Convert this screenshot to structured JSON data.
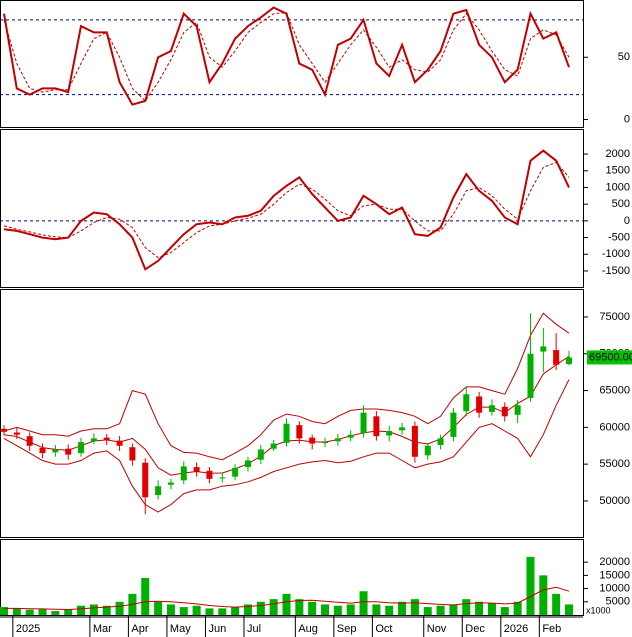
{
  "chart_data": [
    {
      "type": "line",
      "ylim": [
        -6,
        96
      ],
      "yticks": [
        0,
        50
      ],
      "hlines": [
        80,
        20
      ],
      "hline_color": "#000080",
      "series": [
        {
          "color": "#c00000",
          "values": [
            85,
            25,
            20,
            25,
            25,
            22,
            75,
            70,
            70,
            30,
            12,
            15,
            50,
            55,
            85,
            75,
            30,
            45,
            65,
            75,
            82,
            90,
            85,
            45,
            40,
            20,
            60,
            65,
            80,
            45,
            35,
            60,
            30,
            40,
            55,
            85,
            88,
            60,
            50,
            30,
            40,
            85,
            65,
            70,
            42
          ]
        },
        {
          "color": "#c00000",
          "dashed": true,
          "values": [
            80,
            45,
            25,
            22,
            24,
            24,
            45,
            65,
            70,
            50,
            25,
            15,
            30,
            48,
            70,
            78,
            50,
            42,
            55,
            70,
            78,
            85,
            86,
            60,
            45,
            30,
            45,
            60,
            72,
            58,
            42,
            48,
            40,
            38,
            48,
            72,
            85,
            72,
            55,
            40,
            35,
            65,
            72,
            68,
            50
          ]
        }
      ]
    },
    {
      "type": "line",
      "ylim": [
        -1980,
        2750
      ],
      "yticks": [
        2000,
        1500,
        1000,
        500,
        0,
        -500,
        -1000,
        -1500
      ],
      "hlines": [
        0
      ],
      "hline_color": "#000080",
      "series": [
        {
          "color": "#c00000",
          "values": [
            -250,
            -300,
            -400,
            -500,
            -550,
            -500,
            0,
            250,
            200,
            -100,
            -500,
            -1450,
            -1200,
            -800,
            -400,
            -100,
            -50,
            -100,
            100,
            150,
            300,
            750,
            1050,
            1300,
            800,
            400,
            0,
            100,
            750,
            500,
            200,
            400,
            -400,
            -450,
            -200,
            700,
            1400,
            900,
            600,
            100,
            -100,
            1800,
            2100,
            1800,
            1000
          ]
        },
        {
          "color": "#c00000",
          "dashed": true,
          "values": [
            -150,
            -250,
            -330,
            -420,
            -480,
            -500,
            -300,
            -50,
            100,
            50,
            -200,
            -800,
            -1100,
            -950,
            -650,
            -350,
            -150,
            -100,
            0,
            80,
            200,
            500,
            850,
            1100,
            950,
            650,
            300,
            150,
            450,
            500,
            350,
            350,
            0,
            -300,
            -300,
            200,
            900,
            1000,
            750,
            350,
            50,
            900,
            1600,
            1750,
            1300
          ]
        }
      ]
    },
    {
      "type": "candlestick",
      "ylim": [
        45100,
        78800
      ],
      "yticks": [
        50000,
        55000,
        60000,
        65000,
        70000,
        75000
      ],
      "up_color": "#00b000",
      "down_color": "#e00000",
      "open": [
        59800,
        59300,
        58800,
        57200,
        56600,
        57100,
        56500,
        58100,
        58600,
        58200,
        57300,
        55200,
        50800,
        52200,
        52800,
        54600,
        54100,
        53100,
        53300,
        54600,
        55600,
        57100,
        57900,
        60300,
        58600,
        57900,
        58100,
        58600,
        59200,
        61500,
        58900,
        59600,
        60200,
        56200,
        57600,
        58700,
        62200,
        64200,
        62100,
        62800,
        61700,
        64000,
        70300,
        70500,
        68600
      ],
      "high": [
        60300,
        59900,
        59300,
        57800,
        57600,
        57700,
        58600,
        59200,
        59100,
        58800,
        57800,
        55800,
        52800,
        53000,
        55400,
        55200,
        54600,
        53800,
        55000,
        56000,
        57600,
        58300,
        61200,
        60800,
        59000,
        58600,
        59100,
        59600,
        63000,
        62200,
        60200,
        60600,
        60800,
        57900,
        59000,
        62600,
        65600,
        64800,
        63800,
        63400,
        63700,
        75500,
        73500,
        72800,
        70400
      ],
      "low": [
        58900,
        58400,
        56800,
        55800,
        56000,
        55600,
        56000,
        57700,
        57600,
        56800,
        54800,
        48200,
        50200,
        51600,
        52300,
        53300,
        52400,
        52500,
        52800,
        54000,
        55000,
        56800,
        57400,
        57800,
        57000,
        57300,
        57500,
        58100,
        58600,
        58200,
        58100,
        59000,
        55200,
        55600,
        57000,
        58100,
        61500,
        61300,
        61600,
        60800,
        60600,
        63500,
        67500,
        67800,
        68400
      ],
      "close": [
        59400,
        59000,
        57500,
        56500,
        57000,
        56300,
        58000,
        58500,
        58300,
        57500,
        55500,
        50500,
        52000,
        52500,
        54700,
        54000,
        53000,
        53200,
        54500,
        55500,
        57000,
        57800,
        60500,
        58500,
        57800,
        58000,
        58500,
        59000,
        62000,
        58800,
        59500,
        60000,
        56000,
        57500,
        58500,
        62000,
        64500,
        62000,
        63000,
        61500,
        63000,
        70000,
        71000,
        68500,
        69500
      ],
      "series": [
        {
          "color": "#c00000",
          "values": [
            59500,
            60000,
            59500,
            59000,
            59000,
            58800,
            59500,
            59800,
            59800,
            60500,
            65000,
            64500,
            60500,
            57500,
            56600,
            56500,
            56000,
            55600,
            56500,
            57500,
            59000,
            61000,
            61800,
            61500,
            60800,
            60500,
            61500,
            62300,
            62500,
            62500,
            62300,
            62000,
            61500,
            60500,
            61500,
            64000,
            65500,
            65500,
            65000,
            64500,
            68000,
            72500,
            75500,
            74000,
            72800
          ]
        },
        {
          "color": "#c00000",
          "values": [
            59000,
            58750,
            58000,
            57250,
            57000,
            56900,
            57500,
            58150,
            58300,
            58000,
            58500,
            57000,
            54500,
            53500,
            53800,
            54000,
            53750,
            53800,
            54350,
            55050,
            56100,
            57500,
            58150,
            58250,
            58050,
            58000,
            58350,
            58850,
            59250,
            59500,
            59400,
            58750,
            58000,
            57750,
            58400,
            60000,
            61750,
            62750,
            62750,
            62000,
            63250,
            64250,
            67250,
            68500,
            69650
          ]
        },
        {
          "color": "#c00000",
          "values": [
            58500,
            57500,
            56500,
            55500,
            55000,
            55000,
            55500,
            56500,
            56800,
            55500,
            52000,
            49500,
            48500,
            49500,
            51000,
            51500,
            51500,
            52000,
            52200,
            52600,
            53200,
            54000,
            54500,
            55000,
            55300,
            55500,
            55200,
            55400,
            56000,
            56500,
            56500,
            55500,
            54500,
            55000,
            55300,
            56000,
            58000,
            60000,
            60500,
            59500,
            58500,
            56000,
            59000,
            63000,
            66500
          ]
        }
      ],
      "last_price": {
        "value": 69500,
        "label": "69500.00"
      },
      "last_price_color": "#00c000"
    },
    {
      "type": "bar",
      "ylim": [
        0,
        28760
      ],
      "yticks": [
        5000,
        10000,
        15000,
        20000
      ],
      "color": "#00b000",
      "unit_label": "x1000",
      "categories": [
        null,
        "2025",
        null,
        null,
        null,
        null,
        null,
        "Mar",
        null,
        null,
        "Apr",
        null,
        null,
        "May",
        null,
        null,
        "Jun",
        null,
        null,
        "Jul",
        null,
        null,
        null,
        "Aug",
        null,
        null,
        "Sep",
        null,
        null,
        "Oct",
        null,
        null,
        null,
        "Nov",
        null,
        null,
        "Dec",
        null,
        null,
        "2026",
        null,
        null,
        "Feb",
        null,
        null
      ],
      "values": [
        3000,
        2500,
        2000,
        2200,
        1500,
        2000,
        3500,
        4000,
        3500,
        5000,
        8000,
        14000,
        5000,
        4000,
        3000,
        3500,
        2500,
        2500,
        3000,
        4000,
        5000,
        6000,
        8000,
        6000,
        5000,
        4000,
        3500,
        4000,
        9000,
        4000,
        3500,
        5000,
        6000,
        3000,
        3500,
        4000,
        6000,
        5000,
        4500,
        3000,
        5000,
        22000,
        15000,
        8000,
        4000
      ],
      "series": [
        {
          "color": "#c00000",
          "values": [
            2500,
            2500,
            2400,
            2300,
            2200,
            2100,
            2300,
            2700,
            3000,
            3300,
            4000,
            5000,
            5200,
            5000,
            4600,
            4200,
            3600,
            3200,
            3000,
            3200,
            3600,
            4200,
            5000,
            5500,
            5600,
            5200,
            4800,
            4500,
            5000,
            5000,
            4600,
            4500,
            4600,
            4300,
            4000,
            3800,
            4300,
            4600,
            4500,
            4200,
            4500,
            7000,
            9500,
            10500,
            9000
          ]
        }
      ]
    }
  ]
}
